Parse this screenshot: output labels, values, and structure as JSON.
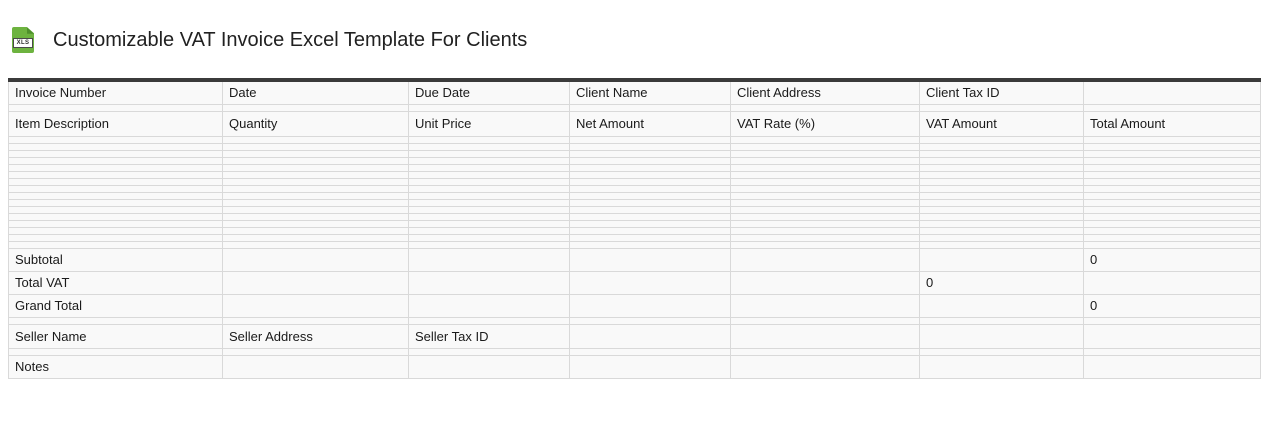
{
  "header": {
    "title": "Customizable VAT Invoice Excel Template For Clients",
    "file_icon": {
      "label": "XLS",
      "color": "#6db33f"
    }
  },
  "table": {
    "column_count": 7,
    "client_header": [
      "Invoice Number",
      "Date",
      "Due Date",
      "Client Name",
      "Client Address",
      "Client Tax ID",
      ""
    ],
    "item_header": [
      "Item Description",
      "Quantity",
      "Unit Price",
      "Net Amount",
      "VAT Rate (%)",
      "VAT Amount",
      "Total Amount"
    ],
    "empty_item_row_count": 16,
    "summary": {
      "subtotal": {
        "label": "Subtotal",
        "vat_amount": "",
        "total_amount": "0"
      },
      "total_vat": {
        "label": "Total VAT",
        "vat_amount": "0",
        "total_amount": ""
      },
      "grand_total": {
        "label": "Grand Total",
        "vat_amount": "",
        "total_amount": "0"
      }
    },
    "seller_header": [
      "Seller Name",
      "Seller Address",
      "Seller Tax ID"
    ],
    "notes_label": "Notes"
  },
  "colors": {
    "table_border": "#d9d9d9",
    "table_top_border": "#3b3b3b",
    "cell_background": "#f9f9f9",
    "text": "#1a1a1a",
    "icon_green": "#6db33f"
  }
}
